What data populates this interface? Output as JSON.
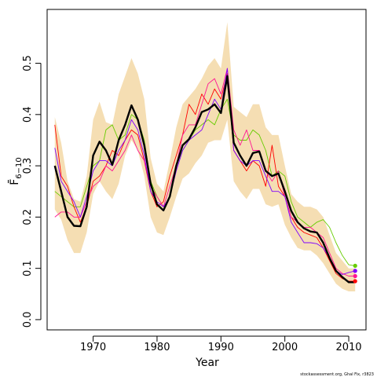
{
  "chart_data": {
    "type": "line",
    "xlabel": "Year",
    "ylabel": "F̄",
    "ylabel_subscript": "6−10",
    "xlim": [
      1962.8,
      2012.7
    ],
    "ylim": [
      -0.02,
      0.605
    ],
    "x_ticks": [
      1970,
      1980,
      1990,
      2000,
      2010
    ],
    "y_ticks": [
      0.0,
      0.1,
      0.2,
      0.3,
      0.4,
      0.5
    ],
    "y_tick_labels": [
      "0.0",
      "0.1",
      "0.2",
      "0.3",
      "0.4",
      "0.5"
    ],
    "grid": false,
    "band": {
      "color": "#f5deb3",
      "x": [
        1964,
        1965,
        1966,
        1967,
        1968,
        1969,
        1970,
        1971,
        1972,
        1973,
        1974,
        1975,
        1976,
        1977,
        1978,
        1979,
        1980,
        1981,
        1982,
        1983,
        1984,
        1985,
        1986,
        1987,
        1988,
        1989,
        1990,
        1991,
        1992,
        1993,
        1994,
        1995,
        1996,
        1997,
        1998,
        1999,
        2000,
        2001,
        2002,
        2003,
        2004,
        2005,
        2006,
        2007,
        2008,
        2009,
        2010,
        2011
      ],
      "upper": [
        0.395,
        0.345,
        0.27,
        0.235,
        0.23,
        0.28,
        0.39,
        0.425,
        0.385,
        0.38,
        0.44,
        0.475,
        0.51,
        0.48,
        0.43,
        0.315,
        0.265,
        0.25,
        0.31,
        0.375,
        0.42,
        0.435,
        0.45,
        0.47,
        0.495,
        0.51,
        0.49,
        0.58,
        0.415,
        0.405,
        0.395,
        0.42,
        0.42,
        0.375,
        0.36,
        0.36,
        0.3,
        0.245,
        0.23,
        0.22,
        0.22,
        0.215,
        0.2,
        0.165,
        0.13,
        0.115,
        0.1,
        0.1
      ],
      "lower": [
        0.215,
        0.195,
        0.155,
        0.13,
        0.13,
        0.17,
        0.245,
        0.27,
        0.25,
        0.235,
        0.265,
        0.32,
        0.35,
        0.33,
        0.28,
        0.2,
        0.17,
        0.165,
        0.2,
        0.24,
        0.275,
        0.285,
        0.305,
        0.32,
        0.345,
        0.35,
        0.35,
        0.39,
        0.27,
        0.25,
        0.235,
        0.255,
        0.255,
        0.225,
        0.22,
        0.225,
        0.185,
        0.16,
        0.14,
        0.135,
        0.135,
        0.125,
        0.11,
        0.09,
        0.07,
        0.06,
        0.055,
        0.055
      ]
    },
    "x": [
      1964,
      1965,
      1966,
      1967,
      1968,
      1969,
      1970,
      1971,
      1972,
      1973,
      1974,
      1975,
      1976,
      1977,
      1978,
      1979,
      1980,
      1981,
      1982,
      1983,
      1984,
      1985,
      1986,
      1987,
      1988,
      1989,
      1990,
      1991,
      1992,
      1993,
      1994,
      1995,
      1996,
      1997,
      1998,
      1999,
      2000,
      2001,
      2002,
      2003,
      2004,
      2005,
      2006,
      2007,
      2008,
      2009,
      2010,
      2011
    ],
    "series": [
      {
        "color": "#000000",
        "width": 2.4,
        "values": [
          0.3,
          0.25,
          0.2,
          0.183,
          0.182,
          0.22,
          0.32,
          0.347,
          0.33,
          0.302,
          0.35,
          0.38,
          0.418,
          0.39,
          0.34,
          0.265,
          0.225,
          0.213,
          0.24,
          0.3,
          0.34,
          0.352,
          0.375,
          0.405,
          0.41,
          0.42,
          0.403,
          0.475,
          0.345,
          0.32,
          0.3,
          0.325,
          0.328,
          0.29,
          0.28,
          0.285,
          0.25,
          0.212,
          0.19,
          0.178,
          0.172,
          0.17,
          0.15,
          0.12,
          0.095,
          0.083,
          0.073,
          0.073
        ]
      },
      {
        "color": "#66cc00",
        "width": 0.9,
        "values": [
          0.25,
          0.24,
          0.23,
          0.22,
          0.22,
          0.26,
          0.3,
          0.31,
          0.37,
          0.38,
          0.35,
          0.36,
          0.4,
          0.39,
          0.35,
          0.27,
          0.24,
          0.22,
          0.24,
          0.3,
          0.33,
          0.35,
          0.37,
          0.38,
          0.39,
          0.38,
          0.41,
          0.43,
          0.36,
          0.35,
          0.35,
          0.37,
          0.36,
          0.33,
          0.28,
          0.29,
          0.28,
          0.23,
          0.2,
          0.19,
          0.18,
          0.19,
          0.195,
          0.18,
          0.15,
          0.125,
          0.107,
          0.105
        ],
        "end_marker": true
      },
      {
        "color": "#ff0000",
        "width": 0.9,
        "values": [
          0.38,
          0.28,
          0.26,
          0.22,
          0.19,
          0.22,
          0.27,
          0.28,
          0.3,
          0.33,
          0.32,
          0.35,
          0.37,
          0.36,
          0.31,
          0.25,
          0.22,
          0.23,
          0.28,
          0.32,
          0.36,
          0.42,
          0.4,
          0.44,
          0.42,
          0.45,
          0.43,
          0.48,
          0.33,
          0.31,
          0.29,
          0.31,
          0.3,
          0.26,
          0.34,
          0.26,
          0.24,
          0.2,
          0.18,
          0.17,
          0.165,
          0.16,
          0.14,
          0.115,
          0.09,
          0.08,
          0.075,
          0.075
        ],
        "end_marker": true
      },
      {
        "color": "#ff1493",
        "width": 0.9,
        "values": [
          0.2,
          0.21,
          0.21,
          0.2,
          0.2,
          0.23,
          0.26,
          0.27,
          0.3,
          0.29,
          0.31,
          0.33,
          0.36,
          0.33,
          0.31,
          0.26,
          0.24,
          0.22,
          0.26,
          0.3,
          0.36,
          0.38,
          0.38,
          0.42,
          0.46,
          0.47,
          0.44,
          0.49,
          0.37,
          0.34,
          0.37,
          0.33,
          0.33,
          0.29,
          0.27,
          0.29,
          0.24,
          0.2,
          0.19,
          0.18,
          0.18,
          0.17,
          0.16,
          0.13,
          0.1,
          0.09,
          0.085,
          0.085
        ],
        "end_marker": true
      },
      {
        "color": "#7f00ff",
        "width": 0.9,
        "values": [
          0.335,
          0.27,
          0.25,
          0.23,
          0.2,
          0.24,
          0.29,
          0.31,
          0.31,
          0.3,
          0.33,
          0.35,
          0.39,
          0.37,
          0.32,
          0.25,
          0.23,
          0.22,
          0.24,
          0.29,
          0.33,
          0.35,
          0.36,
          0.37,
          0.4,
          0.43,
          0.41,
          0.49,
          0.33,
          0.31,
          0.3,
          0.31,
          0.31,
          0.28,
          0.25,
          0.25,
          0.24,
          0.19,
          0.17,
          0.15,
          0.15,
          0.148,
          0.14,
          0.12,
          0.095,
          0.088,
          0.092,
          0.095
        ],
        "end_marker": true
      }
    ],
    "credit": "stockassessment.org, Ghal Fix, r3823"
  }
}
